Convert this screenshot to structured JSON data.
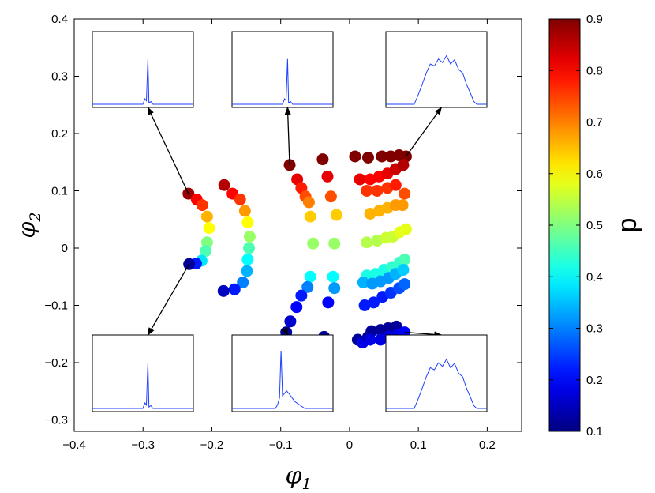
{
  "chart_data": {
    "type": "scatter",
    "xlabel": "φ1",
    "xlabel_base": "φ",
    "xlabel_sub": "1",
    "ylabel": "φ2",
    "ylabel_base": "φ",
    "ylabel_sub": "2",
    "xlim": [
      -0.4,
      0.25
    ],
    "ylim": [
      -0.32,
      0.4
    ],
    "xticks": [
      -0.4,
      -0.3,
      -0.2,
      -0.1,
      0,
      0.1,
      0.2
    ],
    "xtick_labels": [
      "−0.4",
      "−0.3",
      "−0.2",
      "−0.1",
      "0",
      "0.1",
      "0.2"
    ],
    "yticks": [
      -0.3,
      -0.2,
      -0.1,
      0,
      0.1,
      0.2,
      0.3,
      0.4
    ],
    "ytick_labels": [
      "−0.3",
      "−0.2",
      "−0.1",
      "0",
      "0.1",
      "0.2",
      "0.3",
      "0.4"
    ],
    "grid": false,
    "colorbar": {
      "label": "p",
      "range": [
        0.1,
        0.9
      ],
      "ticks": [
        0.1,
        0.2,
        0.3,
        0.4,
        0.5,
        0.6,
        0.7,
        0.8,
        0.9
      ],
      "tick_labels": [
        "0.1",
        "0.2",
        "0.3",
        "0.4",
        "0.5",
        "0.6",
        "0.7",
        "0.8",
        "0.9"
      ],
      "colormap": "jet"
    },
    "points": [
      {
        "x": -0.234,
        "y": 0.095,
        "p": 0.88
      },
      {
        "x": -0.222,
        "y": 0.085,
        "p": 0.8
      },
      {
        "x": -0.214,
        "y": 0.075,
        "p": 0.76
      },
      {
        "x": -0.207,
        "y": 0.055,
        "p": 0.66
      },
      {
        "x": -0.204,
        "y": 0.035,
        "p": 0.6
      },
      {
        "x": -0.207,
        "y": 0.01,
        "p": 0.5
      },
      {
        "x": -0.209,
        "y": -0.005,
        "p": 0.46
      },
      {
        "x": -0.215,
        "y": -0.022,
        "p": 0.38
      },
      {
        "x": -0.223,
        "y": -0.027,
        "p": 0.22
      },
      {
        "x": -0.233,
        "y": -0.028,
        "p": 0.12
      },
      {
        "x": -0.182,
        "y": 0.11,
        "p": 0.86
      },
      {
        "x": -0.17,
        "y": 0.095,
        "p": 0.8
      },
      {
        "x": -0.159,
        "y": 0.085,
        "p": 0.76
      },
      {
        "x": -0.152,
        "y": 0.065,
        "p": 0.68
      },
      {
        "x": -0.148,
        "y": 0.045,
        "p": 0.6
      },
      {
        "x": -0.145,
        "y": 0.02,
        "p": 0.52
      },
      {
        "x": -0.146,
        "y": 0.0,
        "p": 0.46
      },
      {
        "x": -0.148,
        "y": -0.02,
        "p": 0.4
      },
      {
        "x": -0.149,
        "y": -0.04,
        "p": 0.34
      },
      {
        "x": -0.155,
        "y": -0.06,
        "p": 0.3
      },
      {
        "x": -0.167,
        "y": -0.072,
        "p": 0.22
      },
      {
        "x": -0.183,
        "y": -0.075,
        "p": 0.15
      },
      {
        "x": -0.087,
        "y": 0.145,
        "p": 0.9
      },
      {
        "x": -0.076,
        "y": 0.12,
        "p": 0.82
      },
      {
        "x": -0.07,
        "y": 0.105,
        "p": 0.78
      },
      {
        "x": -0.064,
        "y": 0.09,
        "p": 0.74
      },
      {
        "x": -0.059,
        "y": 0.08,
        "p": 0.7
      },
      {
        "x": -0.057,
        "y": 0.055,
        "p": 0.64
      },
      {
        "x": -0.053,
        "y": 0.008,
        "p": 0.52
      },
      {
        "x": -0.057,
        "y": -0.05,
        "p": 0.4
      },
      {
        "x": -0.061,
        "y": -0.068,
        "p": 0.3
      },
      {
        "x": -0.07,
        "y": -0.083,
        "p": 0.22
      },
      {
        "x": -0.077,
        "y": -0.103,
        "p": 0.2
      },
      {
        "x": -0.086,
        "y": -0.128,
        "p": 0.16
      },
      {
        "x": -0.092,
        "y": -0.147,
        "p": 0.12
      },
      {
        "x": -0.039,
        "y": 0.155,
        "p": 0.9
      },
      {
        "x": -0.032,
        "y": 0.125,
        "p": 0.82
      },
      {
        "x": -0.027,
        "y": 0.09,
        "p": 0.74
      },
      {
        "x": -0.019,
        "y": 0.058,
        "p": 0.64
      },
      {
        "x": -0.022,
        "y": 0.008,
        "p": 0.52
      },
      {
        "x": -0.024,
        "y": -0.05,
        "p": 0.4
      },
      {
        "x": -0.022,
        "y": -0.07,
        "p": 0.32
      },
      {
        "x": -0.031,
        "y": -0.095,
        "p": 0.2
      },
      {
        "x": -0.037,
        "y": -0.155,
        "p": 0.12
      },
      {
        "x": 0.008,
        "y": 0.16,
        "p": 0.9
      },
      {
        "x": 0.012,
        "y": -0.16,
        "p": 0.12
      },
      {
        "x": 0.019,
        "y": -0.165,
        "p": 0.18
      },
      {
        "x": 0.027,
        "y": -0.155,
        "p": 0.12
      },
      {
        "x": 0.027,
        "y": 0.158,
        "p": 0.9
      },
      {
        "x": 0.047,
        "y": 0.16,
        "p": 0.9
      },
      {
        "x": 0.06,
        "y": 0.16,
        "p": 0.9
      },
      {
        "x": 0.072,
        "y": 0.162,
        "p": 0.9
      },
      {
        "x": 0.082,
        "y": 0.16,
        "p": 0.9
      },
      {
        "x": 0.015,
        "y": 0.12,
        "p": 0.82
      },
      {
        "x": 0.03,
        "y": 0.12,
        "p": 0.8
      },
      {
        "x": 0.043,
        "y": 0.125,
        "p": 0.8
      },
      {
        "x": 0.055,
        "y": 0.13,
        "p": 0.82
      },
      {
        "x": 0.067,
        "y": 0.138,
        "p": 0.84
      },
      {
        "x": 0.078,
        "y": 0.145,
        "p": 0.86
      },
      {
        "x": 0.025,
        "y": 0.1,
        "p": 0.76
      },
      {
        "x": 0.04,
        "y": 0.1,
        "p": 0.76
      },
      {
        "x": 0.055,
        "y": 0.105,
        "p": 0.76
      },
      {
        "x": 0.067,
        "y": 0.11,
        "p": 0.78
      },
      {
        "x": 0.08,
        "y": 0.095,
        "p": 0.74
      },
      {
        "x": 0.03,
        "y": 0.06,
        "p": 0.66
      },
      {
        "x": 0.043,
        "y": 0.065,
        "p": 0.66
      },
      {
        "x": 0.055,
        "y": 0.07,
        "p": 0.66
      },
      {
        "x": 0.067,
        "y": 0.075,
        "p": 0.68
      },
      {
        "x": 0.077,
        "y": 0.075,
        "p": 0.68
      },
      {
        "x": 0.025,
        "y": 0.01,
        "p": 0.54
      },
      {
        "x": 0.04,
        "y": 0.013,
        "p": 0.54
      },
      {
        "x": 0.053,
        "y": 0.018,
        "p": 0.56
      },
      {
        "x": 0.063,
        "y": 0.02,
        "p": 0.56
      },
      {
        "x": 0.073,
        "y": 0.028,
        "p": 0.58
      },
      {
        "x": 0.082,
        "y": 0.033,
        "p": 0.58
      },
      {
        "x": 0.025,
        "y": -0.048,
        "p": 0.42
      },
      {
        "x": 0.038,
        "y": -0.045,
        "p": 0.42
      },
      {
        "x": 0.05,
        "y": -0.038,
        "p": 0.42
      },
      {
        "x": 0.062,
        "y": -0.033,
        "p": 0.44
      },
      {
        "x": 0.073,
        "y": -0.025,
        "p": 0.44
      },
      {
        "x": 0.08,
        "y": -0.02,
        "p": 0.46
      },
      {
        "x": 0.02,
        "y": -0.06,
        "p": 0.34
      },
      {
        "x": 0.033,
        "y": -0.062,
        "p": 0.32
      },
      {
        "x": 0.045,
        "y": -0.058,
        "p": 0.32
      },
      {
        "x": 0.057,
        "y": -0.052,
        "p": 0.32
      },
      {
        "x": 0.067,
        "y": -0.045,
        "p": 0.34
      },
      {
        "x": 0.078,
        "y": -0.038,
        "p": 0.36
      },
      {
        "x": 0.022,
        "y": -0.1,
        "p": 0.22
      },
      {
        "x": 0.035,
        "y": -0.095,
        "p": 0.22
      },
      {
        "x": 0.048,
        "y": -0.085,
        "p": 0.22
      },
      {
        "x": 0.06,
        "y": -0.078,
        "p": 0.24
      },
      {
        "x": 0.072,
        "y": -0.07,
        "p": 0.26
      },
      {
        "x": 0.08,
        "y": -0.063,
        "p": 0.28
      },
      {
        "x": 0.032,
        "y": -0.145,
        "p": 0.12
      },
      {
        "x": 0.045,
        "y": -0.143,
        "p": 0.12
      },
      {
        "x": 0.056,
        "y": -0.14,
        "p": 0.12
      },
      {
        "x": 0.068,
        "y": -0.137,
        "p": 0.12
      },
      {
        "x": 0.03,
        "y": -0.16,
        "p": 0.18
      },
      {
        "x": 0.045,
        "y": -0.16,
        "p": 0.18
      },
      {
        "x": 0.057,
        "y": -0.155,
        "p": 0.18
      },
      {
        "x": 0.069,
        "y": -0.152,
        "p": 0.18
      },
      {
        "x": 0.08,
        "y": -0.147,
        "p": 0.2
      }
    ],
    "insets": [
      {
        "id": "inset-top-left",
        "anchor": [
          -0.234,
          0.095
        ],
        "shape": "spike",
        "arrow_to": "bottom"
      },
      {
        "id": "inset-top-middle",
        "anchor": [
          -0.087,
          0.145
        ],
        "shape": "spike",
        "arrow_to": "bottom"
      },
      {
        "id": "inset-top-right",
        "anchor": [
          0.082,
          0.16
        ],
        "shape": "broad",
        "arrow_to": "bottom"
      },
      {
        "id": "inset-bottom-left",
        "anchor": [
          -0.233,
          -0.028
        ],
        "shape": "spike",
        "arrow_to": "top"
      },
      {
        "id": "inset-bottom-middle",
        "anchor": [
          -0.092,
          -0.147
        ],
        "shape": "spike-tail",
        "arrow_to": "top"
      },
      {
        "id": "inset-bottom-right",
        "anchor": [
          0.08,
          -0.147
        ],
        "shape": "broad",
        "arrow_to": "top"
      }
    ]
  }
}
